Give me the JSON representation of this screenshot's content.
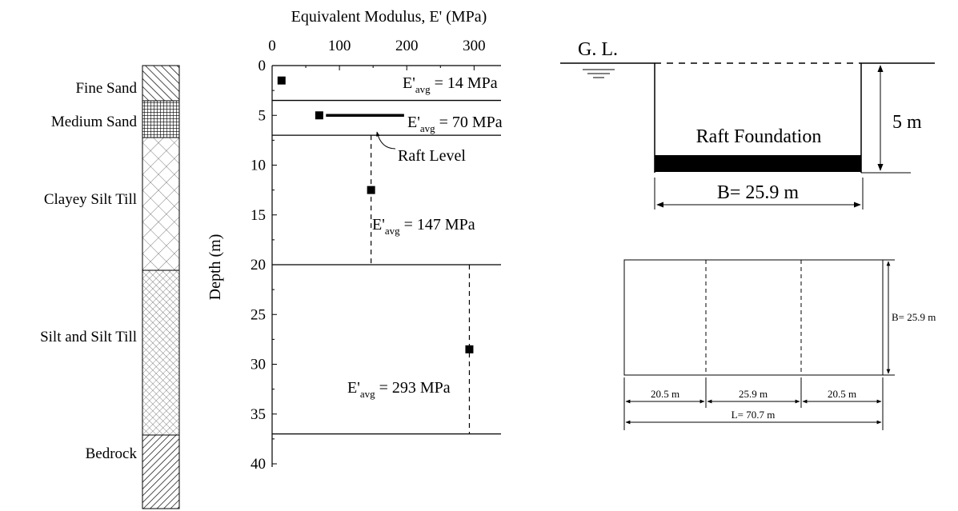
{
  "soil_column": {
    "layers": [
      {
        "name": "Fine Sand",
        "top": 0,
        "bottom": 3.5,
        "pattern": "diagonal-hatch"
      },
      {
        "name": "Medium Sand",
        "top": 3.5,
        "bottom": 7,
        "pattern": "grid-hatch"
      },
      {
        "name": "Clayey Silt Till",
        "top": 7,
        "bottom": 20,
        "pattern": "open-crosshatch"
      },
      {
        "name": "Silt and Silt Till",
        "top": 20,
        "bottom": 37,
        "pattern": "fine-crosshatch"
      },
      {
        "name": "Bedrock",
        "top": 37,
        "bottom": 40.5,
        "pattern": "back-diagonal-hatch"
      }
    ]
  },
  "chart_data": {
    "type": "scatter",
    "title": "Equivalent Modulus, E' (MPa)",
    "xlabel": "Equivalent Modulus, E' (MPa)",
    "ylabel": "Depth (m)",
    "xlim": [
      0,
      340
    ],
    "ylim": [
      40,
      0
    ],
    "x_axis_position": "top",
    "x_ticks": [
      0,
      100,
      200,
      300
    ],
    "y_ticks": [
      0,
      5,
      10,
      15,
      20,
      25,
      30,
      35,
      40
    ],
    "points": [
      {
        "x": 14,
        "y": 1.5
      },
      {
        "x": 70,
        "y": 5
      },
      {
        "x": 147,
        "y": 12.5
      },
      {
        "x": 293,
        "y": 28.5
      }
    ],
    "layer_boundaries_depth": [
      3.5,
      7,
      20,
      37
    ],
    "average_lines": [
      {
        "x": 147,
        "from": 7,
        "to": 20
      },
      {
        "x": 293,
        "from": 20,
        "to": 37
      }
    ],
    "raft_level": {
      "depth": 5,
      "x_from": 80,
      "x_to": 196,
      "label": "Raft Level"
    },
    "annotations": [
      {
        "prefix": "E'",
        "sub": "avg",
        "suffix": " = 14 MPa"
      },
      {
        "prefix": "E'",
        "sub": "avg",
        "suffix": " = 70 MPa"
      },
      {
        "prefix": "E'",
        "sub": "avg",
        "suffix": " = 147 MPa"
      },
      {
        "prefix": "E'",
        "sub": "avg",
        "suffix": " = 293 MPa"
      }
    ]
  },
  "section": {
    "gl_label": "G. L.",
    "depth_label": "5 m",
    "raft_label": "Raft Foundation",
    "width_label": "B= 25.9 m"
  },
  "plan": {
    "b_label": "B= 25.9 m",
    "segments": [
      "20.5 m",
      "25.9 m",
      "20.5 m"
    ],
    "total_label": "L= 70.7 m"
  }
}
